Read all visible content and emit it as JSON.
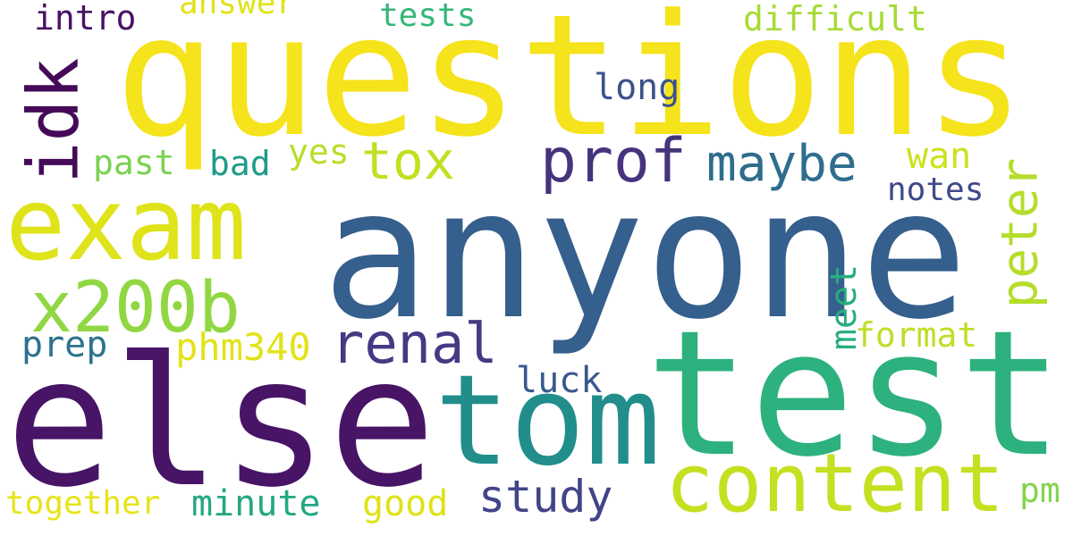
{
  "words": {
    "questions": {
      "text": "questions",
      "color": "#f5e31b"
    },
    "anyone": {
      "text": "anyone",
      "color": "#355f8c"
    },
    "else": {
      "text": "else",
      "color": "#471466"
    },
    "test": {
      "text": "test",
      "color": "#2db17e"
    },
    "exam": {
      "text": "exam",
      "color": "#dfe31a"
    },
    "tom": {
      "text": "tom",
      "color": "#218e8c"
    },
    "content": {
      "text": "content",
      "color": "#c5e021"
    },
    "x200b": {
      "text": "x200b",
      "color": "#91d743"
    },
    "idk": {
      "text": "idk",
      "color": "#440a57"
    },
    "prof": {
      "text": "prof",
      "color": "#46337d"
    },
    "maybe": {
      "text": "maybe",
      "color": "#2e6d8e"
    },
    "renal": {
      "text": "renal",
      "color": "#443a83"
    },
    "tox": {
      "text": "tox",
      "color": "#c3df22"
    },
    "peter": {
      "text": "peter",
      "color": "#b5dd2b"
    },
    "study": {
      "text": "study",
      "color": "#414487"
    },
    "phm340": {
      "text": "phm340",
      "color": "#e2e318"
    },
    "minute": {
      "text": "minute",
      "color": "#23a882"
    },
    "together": {
      "text": "together",
      "color": "#e7e419"
    },
    "good": {
      "text": "good",
      "color": "#dde318"
    },
    "intro": {
      "text": "intro",
      "color": "#471365"
    },
    "answer": {
      "text": "answer",
      "color": "#dfe318"
    },
    "tests": {
      "text": "tests",
      "color": "#35b779"
    },
    "difficult": {
      "text": "difficult",
      "color": "#a6db35"
    },
    "long": {
      "text": "long",
      "color": "#3b528b"
    },
    "past": {
      "text": "past",
      "color": "#7ad151"
    },
    "bad": {
      "text": "bad",
      "color": "#1f9a8a"
    },
    "yes": {
      "text": "yes",
      "color": "#b8de29"
    },
    "wan": {
      "text": "wan",
      "color": "#cde11d"
    },
    "notes": {
      "text": "notes",
      "color": "#3e4a89"
    },
    "prep": {
      "text": "prep",
      "color": "#2c728e"
    },
    "meet": {
      "text": "meet",
      "color": "#27ad81"
    },
    "format": {
      "text": "format",
      "color": "#bddf26"
    },
    "luck": {
      "text": "luck",
      "color": "#38598c"
    },
    "pm": {
      "text": "pm",
      "color": "#84d44b"
    }
  }
}
